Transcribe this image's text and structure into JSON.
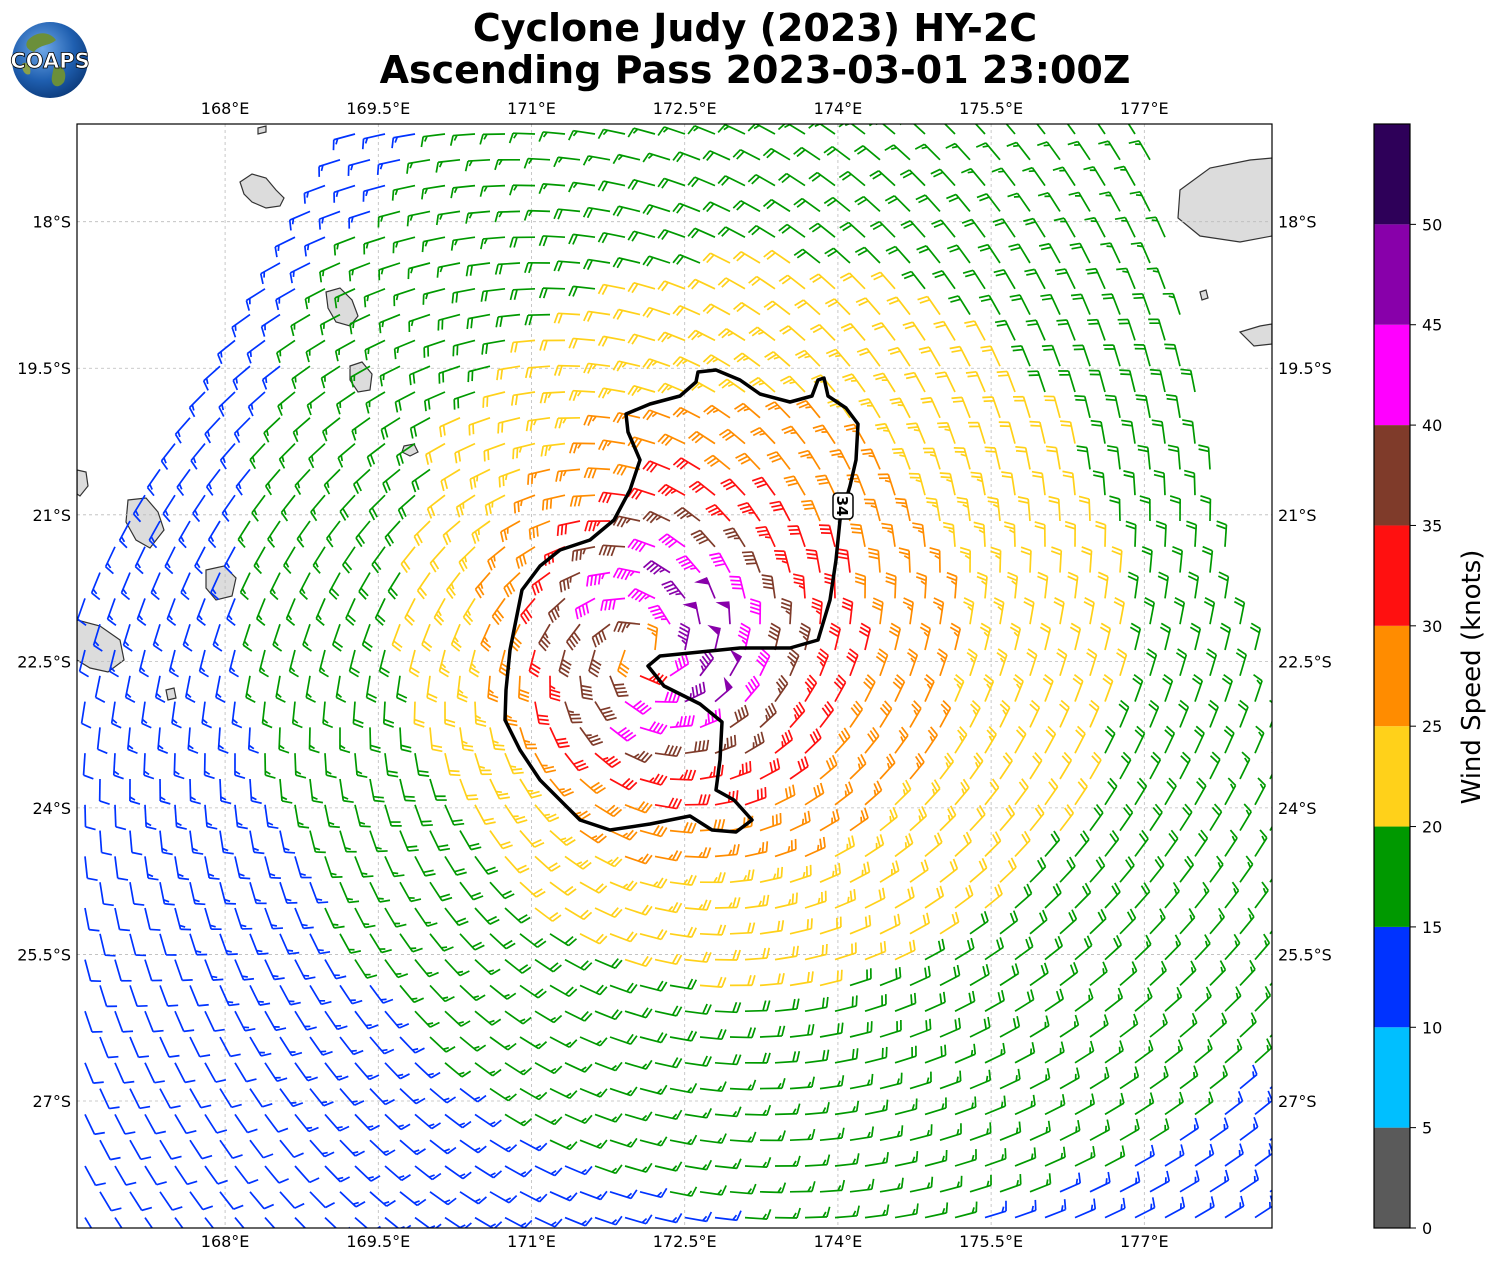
{
  "title": {
    "line1": "Cyclone Judy (2023) HY-2C",
    "line2": "Ascending Pass 2023-03-01 23:00Z"
  },
  "logo": {
    "text": "COAPS",
    "icon": "globe-icon"
  },
  "map": {
    "lon_ticks": [
      "168°E",
      "169.5°E",
      "171°E",
      "172.5°E",
      "174°E",
      "175.5°E",
      "177°E"
    ],
    "lat_ticks": [
      "18°S",
      "19.5°S",
      "21°S",
      "22.5°S",
      "24°S",
      "25.5°S",
      "27°S"
    ],
    "lon_values": [
      168,
      169.5,
      171,
      172.5,
      174,
      175.5,
      177
    ],
    "lat_values": [
      -18,
      -19.5,
      -21,
      -22.5,
      -24,
      -25.5,
      -27
    ],
    "extent": {
      "lon_min": 166.55,
      "lon_max": 178.25,
      "lat_min": -28.3,
      "lat_max": -17.0
    },
    "contour_label": "34",
    "contour_value_knots": 34,
    "cyclone_center": {
      "lon": 172.1,
      "lat": -22.4
    }
  },
  "colorbar": {
    "label": "Wind Speed (knots)",
    "ticks": [
      "0",
      "5",
      "10",
      "15",
      "20",
      "25",
      "30",
      "35",
      "40",
      "45",
      "50"
    ],
    "levels": [
      0,
      5,
      10,
      15,
      20,
      25,
      30,
      35,
      40,
      45,
      50,
      55
    ],
    "colors": [
      "#5a5a5a",
      "#00bfff",
      "#0033ff",
      "#009900",
      "#ffd11a",
      "#ff8c00",
      "#ff1010",
      "#7f3b2a",
      "#ff00ff",
      "#8800aa",
      "#2e0059"
    ]
  }
}
